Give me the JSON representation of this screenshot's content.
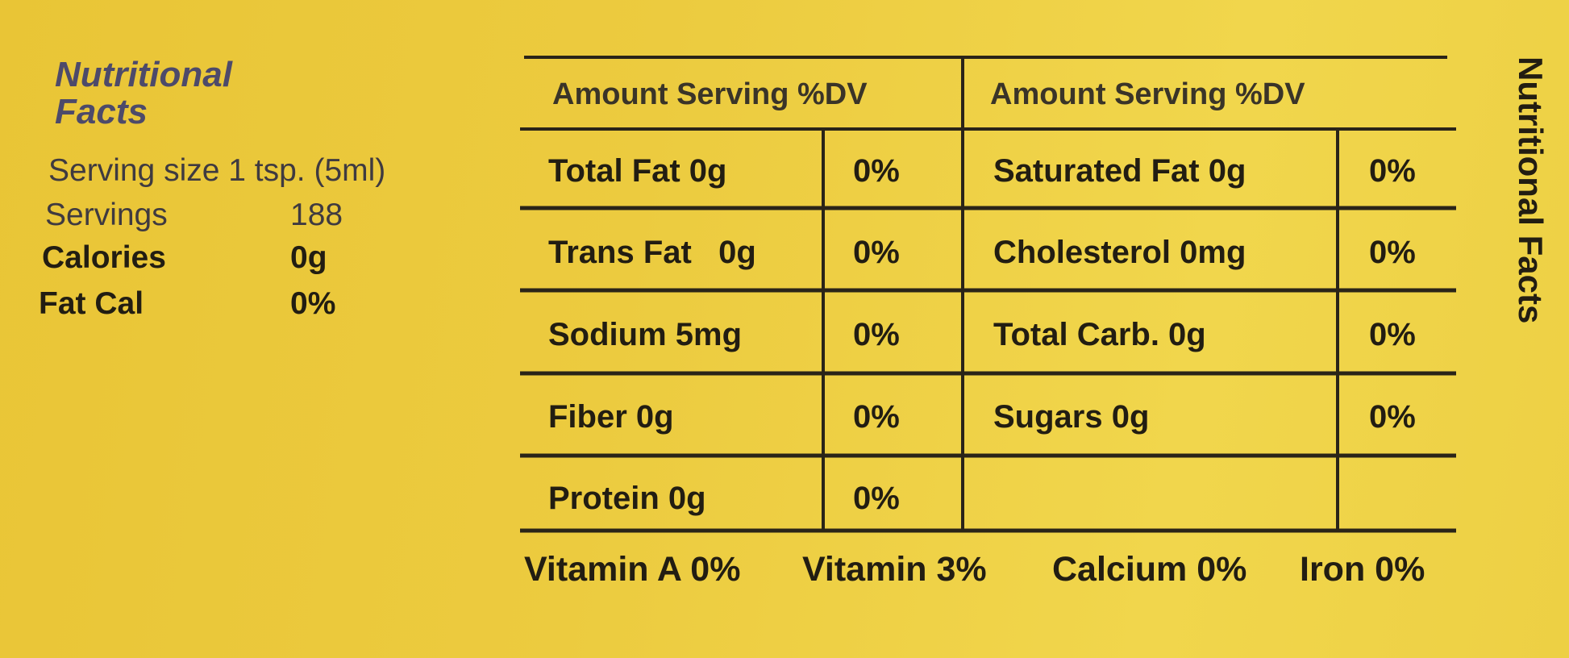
{
  "header": {
    "title": "Nutritional Facts",
    "side_title": "Nutritional Facts"
  },
  "summary": {
    "serving_size": "Serving size 1 tsp. (5ml)",
    "rows": [
      [
        "Servings",
        "188"
      ],
      [
        "Calories",
        "0g"
      ],
      [
        "Fat Cal",
        "0%"
      ]
    ]
  },
  "table": {
    "headers": [
      "Amount Serving %DV",
      "Amount Serving %DV"
    ],
    "rows": [
      {
        "left": [
          "Total Fat 0g",
          "0%"
        ],
        "right": [
          "Saturated Fat 0g",
          "0%"
        ]
      },
      {
        "left": [
          "Trans Fat   0g",
          "0%"
        ],
        "right": [
          "Cholesterol 0mg",
          "0%"
        ]
      },
      {
        "left": [
          "Sodium 5mg",
          "0%"
        ],
        "right": [
          "Total Carb. 0g",
          "0%"
        ]
      },
      {
        "left": [
          "Fiber 0g",
          "0%"
        ],
        "right": [
          "Sugars 0g",
          "0%"
        ]
      },
      {
        "left": [
          "Protein 0g",
          "0%"
        ]
      }
    ]
  },
  "vitamins": [
    "Vitamin A 0%",
    "Vitamin 3%",
    "Calcium 0%",
    "Iron 0%"
  ]
}
